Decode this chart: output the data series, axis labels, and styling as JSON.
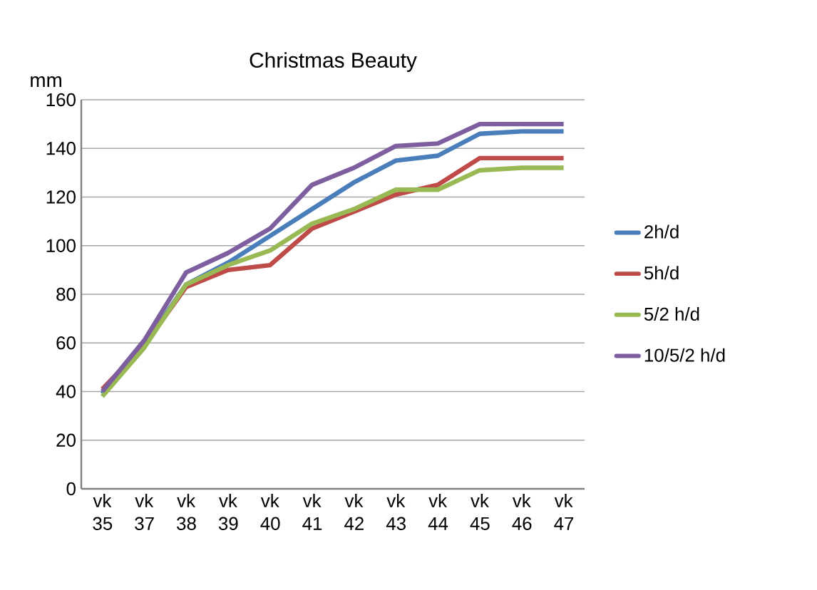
{
  "chart_data": {
    "type": "line",
    "title": "Christmas Beauty",
    "ylabel": "mm",
    "categories": [
      "vk 35",
      "vk 37",
      "vk 38",
      "vk 39",
      "vk 40",
      "vk 41",
      "vk 42",
      "vk 43",
      "vk 44",
      "vk 45",
      "vk 46",
      "vk 47"
    ],
    "series": [
      {
        "name": "2h/d",
        "color": "#4a7ebb",
        "values": [
          39,
          59,
          84,
          93,
          104,
          115,
          126,
          135,
          137,
          146,
          147,
          147
        ]
      },
      {
        "name": "5h/d",
        "color": "#be4b48",
        "values": [
          41,
          59,
          83,
          90,
          92,
          107,
          114,
          121,
          125,
          136,
          136,
          136
        ]
      },
      {
        "name": "5/2 h/d",
        "color": "#98b954",
        "values": [
          38,
          58,
          84,
          92,
          98,
          109,
          115,
          123,
          123,
          131,
          132,
          132
        ]
      },
      {
        "name": "10/5/2 h/d",
        "color": "#7d5fa0",
        "values": [
          40,
          61,
          89,
          97,
          107,
          125,
          132,
          141,
          142,
          150,
          150,
          150
        ]
      }
    ],
    "ylim": [
      0,
      160
    ],
    "yticks": [
      0,
      20,
      40,
      60,
      80,
      100,
      120,
      140,
      160
    ],
    "grid": "y",
    "legend": "right",
    "marker": "none",
    "line_style": "solid"
  }
}
